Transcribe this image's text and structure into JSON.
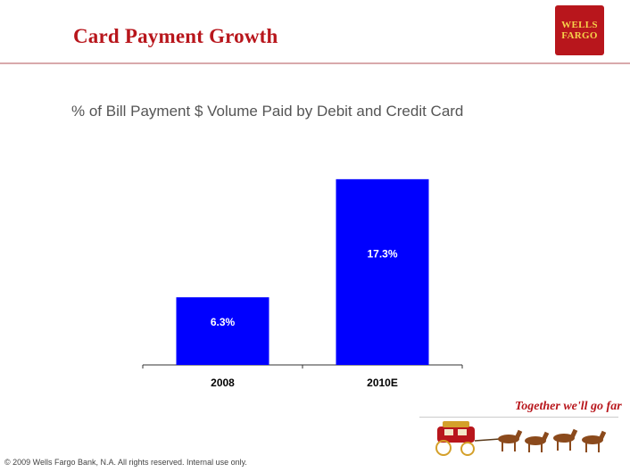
{
  "header": {
    "title": "Card Payment Growth",
    "logo_line1": "WELLS",
    "logo_line2": "FARGO"
  },
  "colors": {
    "brand_red": "#b8161c",
    "brand_gold": "#f6d24a",
    "bar_blue": "#0000ff"
  },
  "chart_data": {
    "type": "bar",
    "title": "% of Bill Payment $ Volume Paid by Debit and Credit Card",
    "categories": [
      "2008",
      "2010E"
    ],
    "values": [
      6.3,
      17.3
    ],
    "data_labels": [
      "6.3%",
      "17.3%"
    ],
    "ylim": [
      0,
      18.2
    ],
    "xlabel": "",
    "ylabel": "",
    "grid": false
  },
  "footer": {
    "tagline": "Together we'll go far",
    "copyright": "© 2009 Wells Fargo Bank, N.A. All rights reserved.  Internal use only."
  }
}
